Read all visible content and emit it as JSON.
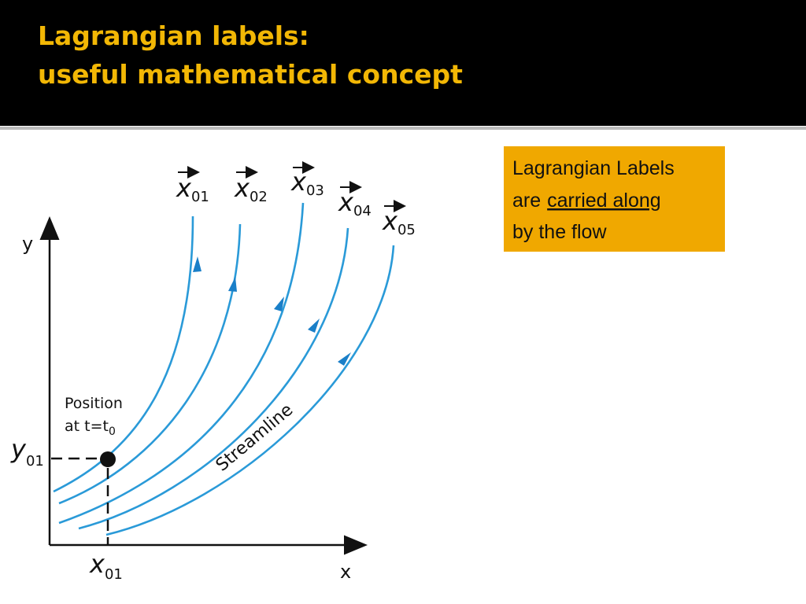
{
  "header": {
    "title_lines": [
      "Lagrangian labels:",
      "useful mathematical concept"
    ]
  },
  "callout": {
    "line1": "Lagrangian Labels",
    "line2_plain": "are",
    "line2_underlined": "carried along",
    "line3": "by the flow"
  },
  "diagram": {
    "axis_labels": {
      "x": "x",
      "y": "y"
    },
    "streamline_labels": [
      {
        "base": "x",
        "sub": "01"
      },
      {
        "base": "x",
        "sub": "02"
      },
      {
        "base": "x",
        "sub": "03"
      },
      {
        "base": "x",
        "sub": "04"
      },
      {
        "base": "x",
        "sub": "05"
      }
    ],
    "origin_x": {
      "base": "x",
      "sub": "01"
    },
    "origin_y": {
      "base": "y",
      "sub": "01"
    },
    "position_note": {
      "line1": "Position",
      "line2_base": "at t=t",
      "line2_sub": "0"
    },
    "streamline_text": "Streamline"
  }
}
